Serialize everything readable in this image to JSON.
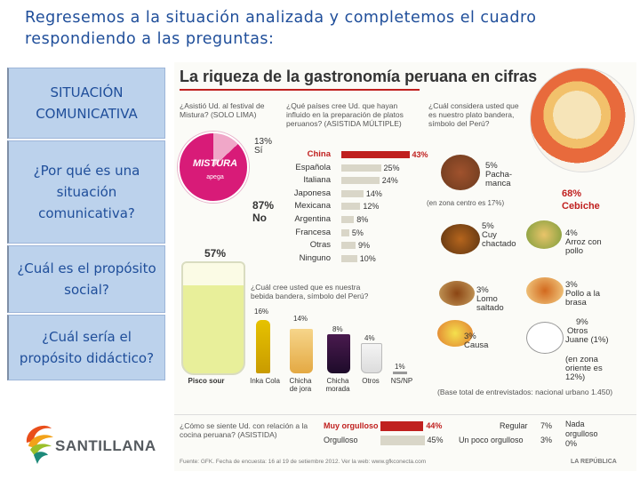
{
  "slide": {
    "title": "Regresemos a la situación analizada y completemos el cuadro respondiendo a las preguntas:",
    "questions": [
      "SITUACIÓN COMUNICATIVA",
      "¿Por qué es una situación comunicativa?",
      "¿Cuál es el propósito social?",
      "¿Cuál sería el propósito didáctico?"
    ],
    "colors": {
      "title": "#1f4e9a",
      "box_fill": "#bcd2ec",
      "accent_red": "#c0201f",
      "mistura_pink": "#d81b78"
    }
  },
  "infographic": {
    "title": "La riqueza de la gastronomía peruana en cifras",
    "mistura": {
      "question": "¿Asistió Ud. al festival de Mistura? (SOLO LIMA)",
      "logo": "MISTURA",
      "logo_sub": "apega",
      "si_pct": "13%",
      "si_label": "Sí",
      "no_pct": "87%",
      "no_label": "No"
    },
    "countries": {
      "question": "¿Qué países cree Ud. que hayan influido en la preparación de platos peruanos? (ASISTIDA MÚLTIPLE)",
      "rows": [
        {
          "name": "China",
          "pct": "43%",
          "value": 43
        },
        {
          "name": "Española",
          "pct": "25%",
          "value": 25
        },
        {
          "name": "Italiana",
          "pct": "24%",
          "value": 24
        },
        {
          "name": "Japonesa",
          "pct": "14%",
          "value": 14
        },
        {
          "name": "Mexicana",
          "pct": "12%",
          "value": 12
        },
        {
          "name": "Argentina",
          "pct": "8%",
          "value": 8
        },
        {
          "name": "Francesa",
          "pct": "5%",
          "value": 5
        },
        {
          "name": "Otras",
          "pct": "9%",
          "value": 9
        },
        {
          "name": "Ninguno",
          "pct": "10%",
          "value": 10
        }
      ]
    },
    "food": {
      "question": "¿Cuál considera usted que es nuestro plato bandera, símbolo del Perú?",
      "items": [
        {
          "pct": "68%",
          "name": "Cebiche"
        },
        {
          "pct": "5%",
          "name": "Pacha-manca"
        },
        {
          "pct": "5%",
          "name": "Cuy chactado"
        },
        {
          "pct": "4%",
          "name": "Arroz con pollo"
        },
        {
          "pct": "3%",
          "name": "Lomo saltado"
        },
        {
          "pct": "3%",
          "name": "Pollo a la brasa"
        },
        {
          "pct": "3%",
          "name": "Causa"
        },
        {
          "pct": "9%",
          "name": "Otros"
        },
        {
          "pct": "",
          "name": "Juane (1%)"
        }
      ],
      "zona_centro": "(en zona centro es 17%)",
      "zona_oriente": "(en zona oriente es 12%)"
    },
    "drinks": {
      "question": "¿Cuál cree usted que es nuestra bebida bandera, símbolo del Perú?",
      "items": [
        {
          "name": "Pisco sour",
          "pct": "57%"
        },
        {
          "name": "Inka Cola",
          "pct": "16%"
        },
        {
          "name": "Chicha de jora",
          "pct": "14%"
        },
        {
          "name": "Chicha morada",
          "pct": "8%"
        },
        {
          "name": "Otros",
          "pct": "4%"
        },
        {
          "name": "NS/NP",
          "pct": "1%"
        }
      ],
      "base": "(Base total de entrevistados: nacional urbano 1.450)"
    },
    "pride": {
      "question": "¿Cómo se siente Ud. con relación a la cocina peruana? (ASISTIDA)",
      "rows": [
        {
          "label": "Muy orgulloso",
          "pct": "44%",
          "value": 44
        },
        {
          "label": "Orgulloso",
          "pct": "45%",
          "value": 45
        }
      ],
      "side": [
        {
          "label": "Regular",
          "pct": "7%"
        },
        {
          "label": "Un poco orgulloso",
          "pct": "3%"
        },
        {
          "label": "Nada orgulloso",
          "pct": "0%"
        }
      ]
    },
    "source": "Fuente: GFK. Fecha de encuesta: 16 al 19 de setiembre 2012. Ver la web: www.gfkconecta.com",
    "publisher": "LA REPÚBLICA"
  },
  "logo": {
    "text": "SANTILLANA"
  }
}
